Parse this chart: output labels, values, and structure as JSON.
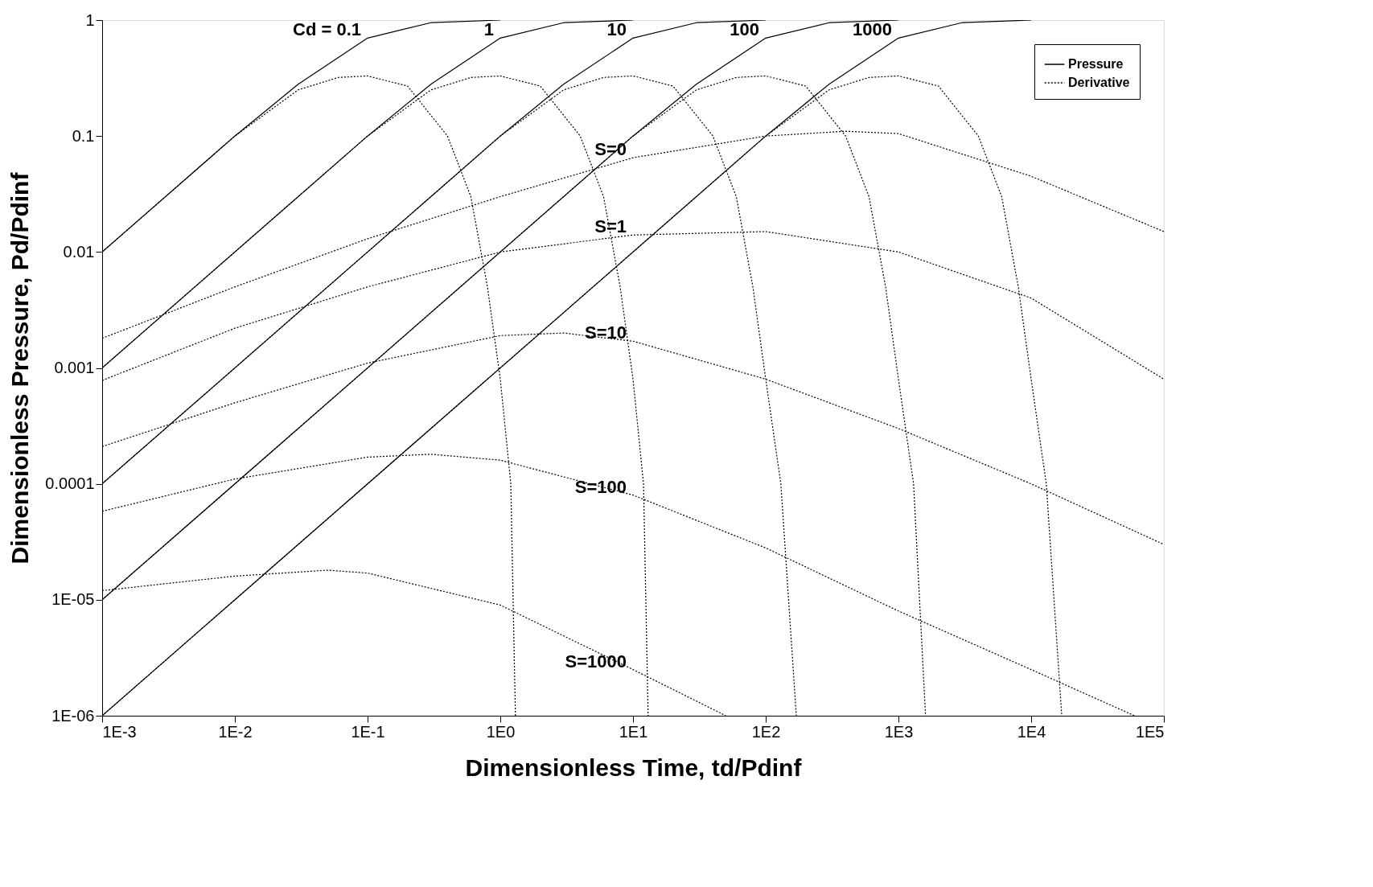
{
  "chart_data": {
    "type": "line",
    "xlabel": "Dimensionless Time, td/Pdinf",
    "ylabel": "Dimensionless Pressure, Pd/Pdinf",
    "log": "xy",
    "grid": false,
    "legend": "top right",
    "marker": "none",
    "xlim": [
      0.001,
      100000
    ],
    "ylim": [
      1e-06,
      1
    ],
    "xticks": [
      {
        "value": 0.001,
        "label": "1E-3"
      },
      {
        "value": 0.01,
        "label": "1E-2"
      },
      {
        "value": 0.1,
        "label": "1E-1"
      },
      {
        "value": 1,
        "label": "1E0"
      },
      {
        "value": 10,
        "label": "1E1"
      },
      {
        "value": 100,
        "label": "1E2"
      },
      {
        "value": 1000,
        "label": "1E3"
      },
      {
        "value": 10000,
        "label": "1E4"
      },
      {
        "value": 100000,
        "label": "1E5"
      }
    ],
    "yticks": [
      {
        "value": 1e-06,
        "label": "1E-06"
      },
      {
        "value": 1e-05,
        "label": "1E-05"
      },
      0.0001,
      0.001,
      0.01,
      0.1,
      1
    ],
    "series": [
      {
        "name": "Pressure",
        "color": "#000000",
        "line_style": "solid",
        "x": [
          0.001,
          0.01,
          0.03,
          0.1,
          0.3,
          1
        ],
        "values": [
          0.01,
          0.1,
          0.28,
          0.7,
          0.95,
          1
        ]
      },
      {
        "color": "#000000",
        "line_style": "solid",
        "x": [
          0.001,
          0.1,
          0.3,
          1,
          3,
          10
        ],
        "values": [
          0.001,
          0.1,
          0.28,
          0.7,
          0.95,
          1
        ]
      },
      {
        "color": "#000000",
        "line_style": "solid",
        "x": [
          0.001,
          1,
          3,
          10,
          30,
          100
        ],
        "values": [
          0.0001,
          0.1,
          0.28,
          0.7,
          0.95,
          1
        ]
      },
      {
        "color": "#000000",
        "line_style": "solid",
        "x": [
          0.001,
          10,
          30,
          100,
          300,
          1000
        ],
        "values": [
          1e-05,
          0.1,
          0.28,
          0.7,
          0.95,
          1
        ]
      },
      {
        "color": "#000000",
        "line_style": "solid",
        "x": [
          0.001,
          100,
          300,
          1000,
          3000,
          10000
        ],
        "values": [
          1e-06,
          0.1,
          0.28,
          0.7,
          0.95,
          1
        ]
      },
      {
        "name": "Derivative",
        "color": "#000000",
        "line_style": "dotted",
        "x": [
          0.001,
          0.01,
          0.03,
          0.06,
          0.1,
          0.2,
          0.4,
          0.6,
          0.8,
          1,
          1.2,
          1.3
        ],
        "values": [
          0.01,
          0.1,
          0.25,
          0.32,
          0.33,
          0.27,
          0.1,
          0.03,
          0.005,
          0.0008,
          0.0001,
          1e-06
        ]
      },
      {
        "color": "#000000",
        "line_style": "dotted",
        "x": [
          0.001,
          0.1,
          0.3,
          0.6,
          1,
          2,
          4,
          6,
          8,
          10,
          12,
          13
        ],
        "values": [
          0.001,
          0.1,
          0.25,
          0.32,
          0.33,
          0.27,
          0.1,
          0.03,
          0.005,
          0.0008,
          0.0001,
          1e-06
        ]
      },
      {
        "color": "#000000",
        "line_style": "dotted",
        "x": [
          0.001,
          1,
          3,
          6,
          10,
          20,
          40,
          60,
          80,
          100,
          130,
          170
        ],
        "values": [
          0.0001,
          0.1,
          0.25,
          0.32,
          0.33,
          0.27,
          0.1,
          0.03,
          0.005,
          0.0008,
          0.0001,
          1e-06
        ]
      },
      {
        "color": "#000000",
        "line_style": "dotted",
        "x": [
          0.001,
          10,
          30,
          60,
          100,
          200,
          400,
          600,
          800,
          1000,
          1300,
          1600
        ],
        "values": [
          1e-05,
          0.1,
          0.25,
          0.32,
          0.33,
          0.27,
          0.1,
          0.03,
          0.005,
          0.0008,
          0.0001,
          1e-06
        ]
      },
      {
        "color": "#000000",
        "line_style": "dotted",
        "x": [
          0.001,
          100,
          300,
          600,
          1000,
          2000,
          4000,
          6000,
          8000,
          10000,
          13000,
          17000
        ],
        "values": [
          1e-06,
          0.1,
          0.25,
          0.32,
          0.33,
          0.27,
          0.1,
          0.03,
          0.005,
          0.0008,
          0.0001,
          1e-06
        ]
      },
      {
        "color": "#000000",
        "line_style": "dotted",
        "x": [
          0.001,
          0.01,
          0.1,
          1,
          10,
          100,
          400,
          1000,
          10000,
          100000
        ],
        "values": [
          0.0018,
          0.005,
          0.013,
          0.03,
          0.065,
          0.1,
          0.11,
          0.105,
          0.045,
          0.015
        ]
      },
      {
        "color": "#000000",
        "line_style": "dotted",
        "x": [
          0.001,
          0.01,
          0.1,
          1,
          10,
          100,
          1000,
          10000,
          100000
        ],
        "values": [
          0.00078,
          0.0022,
          0.005,
          0.01,
          0.014,
          0.015,
          0.01,
          0.004,
          0.0008
        ]
      },
      {
        "color": "#000000",
        "line_style": "dotted",
        "x": [
          0.001,
          0.01,
          0.1,
          1,
          3,
          10,
          100,
          1000,
          10000,
          100000
        ],
        "values": [
          0.00021,
          0.0005,
          0.0011,
          0.0019,
          0.002,
          0.0017,
          0.0008,
          0.0003,
          0.0001,
          3e-05
        ]
      },
      {
        "color": "#000000",
        "line_style": "dotted",
        "x": [
          0.001,
          0.01,
          0.1,
          0.3,
          1,
          10,
          100,
          1000,
          10000,
          60000
        ],
        "values": [
          5.8e-05,
          0.00011,
          0.00017,
          0.00018,
          0.00016,
          8e-05,
          2.8e-05,
          8e-06,
          2.5e-06,
          1e-06
        ]
      },
      {
        "color": "#000000",
        "line_style": "dotted",
        "x": [
          0.001,
          0.01,
          0.05,
          0.1,
          1,
          10,
          50
        ],
        "values": [
          1.2e-05,
          1.6e-05,
          1.8e-05,
          1.7e-05,
          9e-06,
          2.5e-06,
          1e-06
        ]
      }
    ],
    "annotations": [
      {
        "text": "Cd = 0.1",
        "x": 0.1,
        "y": 0.7
      },
      {
        "text": "1",
        "x": 1,
        "y": 0.7
      },
      {
        "text": "10",
        "x": 10,
        "y": 0.7
      },
      {
        "text": "100",
        "x": 100,
        "y": 0.7
      },
      {
        "text": "1000",
        "x": 1000,
        "y": 0.7
      },
      {
        "text": "S=0",
        "x": 10,
        "y": 0.065
      },
      {
        "text": "S=1",
        "x": 10,
        "y": 0.014
      },
      {
        "text": "S=10",
        "x": 10,
        "y": 0.0017
      },
      {
        "text": "S=100",
        "x": 10,
        "y": 8e-05
      },
      {
        "text": "S=1000",
        "x": 10,
        "y": 2.5e-06
      }
    ]
  }
}
